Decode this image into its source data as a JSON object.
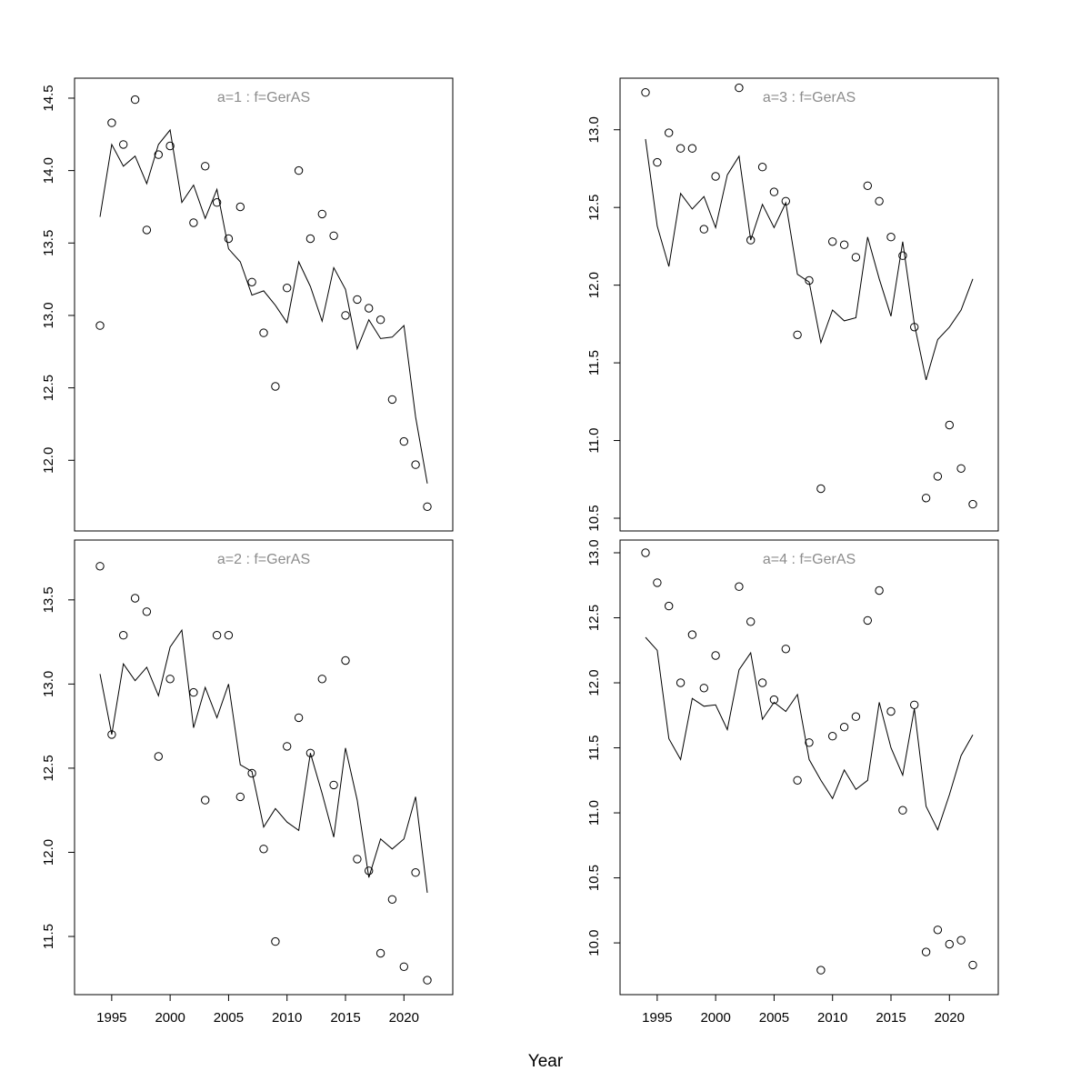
{
  "xlabel": "Year",
  "chart_data": [
    {
      "type": "line+scatter",
      "title": "a=1  :  f=GerAS",
      "xlim": [
        1994,
        2022
      ],
      "ylim": [
        11.6,
        14.55
      ],
      "yticks": [
        12.0,
        12.5,
        13.0,
        13.5,
        14.0,
        14.5
      ],
      "xticks": [],
      "x": [
        1994,
        1995,
        1996,
        1997,
        1998,
        1999,
        2000,
        2001,
        2002,
        2003,
        2004,
        2005,
        2006,
        2007,
        2008,
        2009,
        2010,
        2011,
        2012,
        2013,
        2014,
        2015,
        2016,
        2017,
        2018,
        2019,
        2020,
        2021,
        2022
      ],
      "fitted": [
        13.68,
        14.18,
        14.03,
        14.1,
        13.91,
        14.18,
        14.28,
        13.78,
        13.9,
        13.67,
        13.87,
        13.46,
        13.37,
        13.14,
        13.17,
        13.07,
        12.95,
        13.37,
        13.2,
        12.96,
        13.33,
        13.18,
        12.77,
        12.97,
        12.84,
        12.85,
        12.93,
        12.3,
        11.84
      ],
      "observed": [
        12.93,
        14.33,
        14.18,
        14.49,
        13.59,
        14.11,
        14.17,
        null,
        13.64,
        14.03,
        13.78,
        13.53,
        13.75,
        13.23,
        12.88,
        12.51,
        13.19,
        14.0,
        13.53,
        13.7,
        13.55,
        13.0,
        13.11,
        13.05,
        12.97,
        12.42,
        12.13,
        11.97,
        11.68
      ]
    },
    {
      "type": "line+scatter",
      "title": "a=3  :  f=GerAS",
      "xlim": [
        1994,
        2022
      ],
      "ylim": [
        10.5,
        13.25
      ],
      "yticks": [
        10.5,
        11.0,
        11.5,
        12.0,
        12.5,
        13.0
      ],
      "xticks": [],
      "x": [
        1994,
        1995,
        1996,
        1997,
        1998,
        1999,
        2000,
        2001,
        2002,
        2003,
        2004,
        2005,
        2006,
        2007,
        2008,
        2009,
        2010,
        2011,
        2012,
        2013,
        2014,
        2015,
        2016,
        2017,
        2018,
        2019,
        2020,
        2021,
        2022
      ],
      "fitted": [
        12.94,
        12.38,
        12.12,
        12.59,
        12.49,
        12.57,
        12.37,
        12.71,
        12.83,
        12.29,
        12.52,
        12.37,
        12.53,
        12.07,
        12.02,
        11.63,
        11.84,
        11.77,
        11.79,
        12.31,
        12.04,
        11.8,
        12.28,
        11.75,
        11.39,
        11.65,
        11.73,
        11.84,
        12.04
      ],
      "observed": [
        13.24,
        12.79,
        12.98,
        12.88,
        12.88,
        12.36,
        12.7,
        null,
        13.27,
        12.29,
        12.76,
        12.6,
        12.54,
        11.68,
        12.03,
        10.69,
        12.28,
        12.26,
        12.18,
        12.64,
        12.54,
        12.31,
        12.19,
        11.73,
        10.63,
        10.77,
        11.1,
        10.82,
        10.59
      ]
    },
    {
      "type": "line+scatter",
      "title": "a=2  :  f=GerAS",
      "xlim": [
        1994,
        2022
      ],
      "ylim": [
        11.23,
        13.78
      ],
      "yticks": [
        11.5,
        12.0,
        12.5,
        13.0,
        13.5
      ],
      "xticks": [
        1995,
        2000,
        2005,
        2010,
        2015,
        2020
      ],
      "x": [
        1994,
        1995,
        1996,
        1997,
        1998,
        1999,
        2000,
        2001,
        2002,
        2003,
        2004,
        2005,
        2006,
        2007,
        2008,
        2009,
        2010,
        2011,
        2012,
        2013,
        2014,
        2015,
        2016,
        2017,
        2018,
        2019,
        2020,
        2021,
        2022
      ],
      "fitted": [
        13.06,
        12.7,
        13.12,
        13.02,
        13.1,
        12.93,
        13.22,
        13.32,
        12.74,
        12.98,
        12.8,
        13.0,
        12.52,
        12.48,
        12.15,
        12.26,
        12.18,
        12.13,
        12.59,
        12.35,
        12.09,
        12.62,
        12.31,
        11.85,
        12.08,
        12.02,
        12.08,
        12.33,
        11.76
      ],
      "observed": [
        13.7,
        12.7,
        13.29,
        13.51,
        13.43,
        12.57,
        13.03,
        null,
        12.95,
        12.31,
        13.29,
        13.29,
        12.33,
        12.47,
        12.02,
        11.47,
        12.63,
        12.8,
        12.59,
        13.03,
        12.4,
        13.14,
        11.96,
        11.89,
        11.4,
        11.72,
        11.32,
        11.88,
        11.24
      ]
    },
    {
      "type": "line+scatter",
      "title": "a=4  :  f=GerAS",
      "xlim": [
        1994,
        2022
      ],
      "ylim": [
        9.7,
        13.0
      ],
      "yticks": [
        10.0,
        10.5,
        11.0,
        11.5,
        12.0,
        12.5,
        13.0
      ],
      "xticks": [
        1995,
        2000,
        2005,
        2010,
        2015,
        2020
      ],
      "x": [
        1994,
        1995,
        1996,
        1997,
        1998,
        1999,
        2000,
        2001,
        2002,
        2003,
        2004,
        2005,
        2006,
        2007,
        2008,
        2009,
        2010,
        2011,
        2012,
        2013,
        2014,
        2015,
        2016,
        2017,
        2018,
        2019,
        2020,
        2021,
        2022
      ],
      "fitted": [
        12.35,
        12.25,
        11.57,
        11.41,
        11.88,
        11.82,
        11.83,
        11.64,
        12.1,
        12.23,
        11.72,
        11.85,
        11.78,
        11.91,
        11.41,
        11.25,
        11.11,
        11.33,
        11.18,
        11.25,
        11.85,
        11.5,
        11.29,
        11.8,
        11.05,
        10.87,
        11.14,
        11.44,
        11.6
      ],
      "observed": [
        13.0,
        12.77,
        12.59,
        12.0,
        12.37,
        11.96,
        12.21,
        null,
        12.74,
        12.47,
        12.0,
        11.87,
        12.26,
        11.25,
        11.54,
        9.79,
        11.59,
        11.66,
        11.74,
        12.48,
        12.71,
        11.78,
        11.02,
        11.83,
        9.93,
        10.1,
        9.99,
        10.02,
        9.83
      ]
    }
  ]
}
